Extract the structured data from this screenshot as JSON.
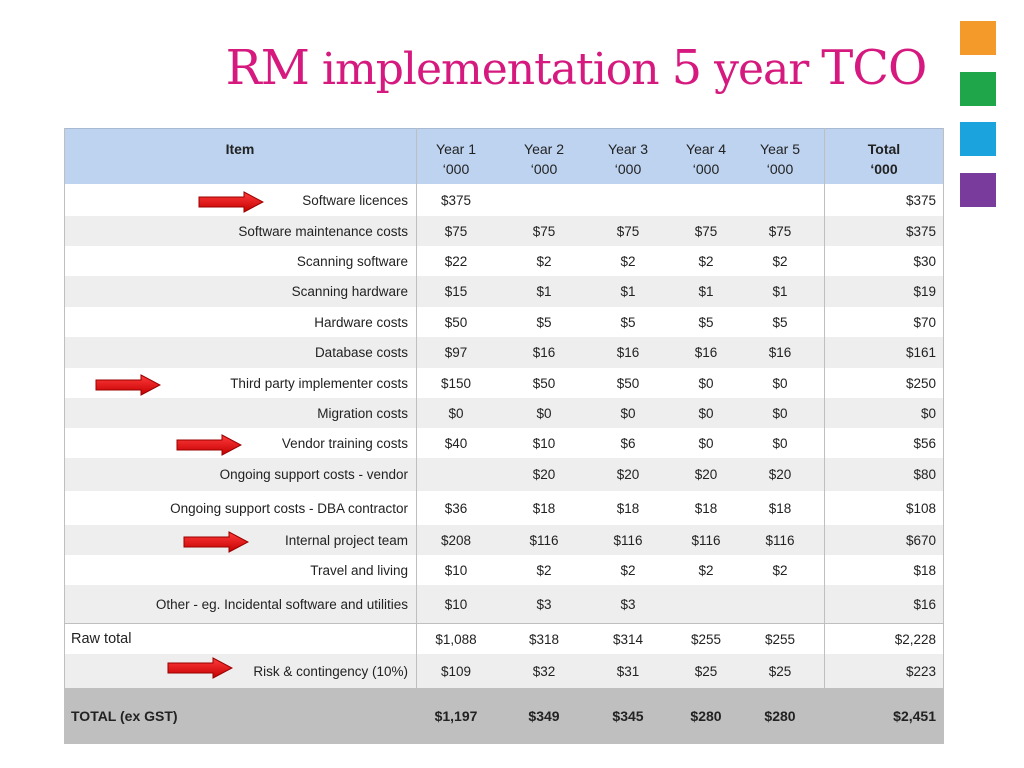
{
  "title": {
    "part1": "RM",
    "part2": " implementation ",
    "part3": "5",
    "part4": " year ",
    "part5": "TCO"
  },
  "accent_colors": [
    "#f39a2b",
    "#1fa64a",
    "#1aa3dc",
    "#7a3c9c"
  ],
  "header": {
    "item": "Item",
    "years": [
      {
        "label": "Year 1",
        "unit": "‘000"
      },
      {
        "label": "Year 2",
        "unit": "‘000"
      },
      {
        "label": "Year 3",
        "unit": "‘000"
      },
      {
        "label": "Year 4",
        "unit": "‘000"
      },
      {
        "label": "Year 5",
        "unit": "‘000"
      }
    ],
    "total": {
      "label": "Total",
      "unit": "‘000"
    }
  },
  "rows": [
    {
      "item": "Software licences",
      "y1": "$375",
      "y2": "",
      "y3": "",
      "y4": "",
      "y5": "",
      "total": "$375",
      "arrow": true
    },
    {
      "item": "Software maintenance costs",
      "y1": "$75",
      "y2": "$75",
      "y3": "$75",
      "y4": "$75",
      "y5": "$75",
      "total": "$375",
      "arrow": false
    },
    {
      "item": "Scanning software",
      "y1": "$22",
      "y2": "$2",
      "y3": "$2",
      "y4": "$2",
      "y5": "$2",
      "total": "$30",
      "arrow": false
    },
    {
      "item": "Scanning hardware",
      "y1": "$15",
      "y2": "$1",
      "y3": "$1",
      "y4": "$1",
      "y5": "$1",
      "total": "$19",
      "arrow": false
    },
    {
      "item": "Hardware costs",
      "y1": "$50",
      "y2": "$5",
      "y3": "$5",
      "y4": "$5",
      "y5": "$5",
      "total": "$70",
      "arrow": false
    },
    {
      "item": "Database costs",
      "y1": "$97",
      "y2": "$16",
      "y3": "$16",
      "y4": "$16",
      "y5": "$16",
      "total": "$161",
      "arrow": false
    },
    {
      "item": "Third party implementer costs",
      "y1": "$150",
      "y2": "$50",
      "y3": "$50",
      "y4": "$0",
      "y5": "$0",
      "total": "$250",
      "arrow": true
    },
    {
      "item": "Migration costs",
      "y1": "$0",
      "y2": "$0",
      "y3": "$0",
      "y4": "$0",
      "y5": "$0",
      "total": "$0",
      "arrow": false
    },
    {
      "item": "Vendor training costs",
      "y1": "$40",
      "y2": "$10",
      "y3": "$6",
      "y4": "$0",
      "y5": "$0",
      "total": "$56",
      "arrow": true
    },
    {
      "item": "Ongoing support costs - vendor",
      "y1": "",
      "y2": "$20",
      "y3": "$20",
      "y4": "$20",
      "y5": "$20",
      "total": "$80",
      "arrow": false
    },
    {
      "item": "Ongoing support costs - DBA contractor",
      "y1": "$36",
      "y2": "$18",
      "y3": "$18",
      "y4": "$18",
      "y5": "$18",
      "total": "$108",
      "arrow": false
    },
    {
      "item": "Internal project team",
      "y1": "$208",
      "y2": "$116",
      "y3": "$116",
      "y4": "$116",
      "y5": "$116",
      "total": "$670",
      "arrow": true
    },
    {
      "item": "Travel and living",
      "y1": "$10",
      "y2": "$2",
      "y3": "$2",
      "y4": "$2",
      "y5": "$2",
      "total": "$18",
      "arrow": false
    },
    {
      "item": "Other - eg. Incidental software and utilities",
      "y1": "$10",
      "y2": "$3",
      "y3": "$3",
      "y4": "",
      "y5": "",
      "total": "$16",
      "arrow": false
    }
  ],
  "raw_total": {
    "item": "Raw total",
    "y1": "$1,088",
    "y2": "$318",
    "y3": "$314",
    "y4": "$255",
    "y5": "$255",
    "total": "$2,228"
  },
  "risk": {
    "item": "Risk & contingency (10%)",
    "y1": "$109",
    "y2": "$32",
    "y3": "$31",
    "y4": "$25",
    "y5": "$25",
    "total": "$223",
    "arrow": true
  },
  "grand_total": {
    "item": "TOTAL  (ex GST)",
    "y1": "$1,197",
    "y2": "$349",
    "y3": "$345",
    "y4": "$280",
    "y5": "$280",
    "total": "$2,451"
  }
}
